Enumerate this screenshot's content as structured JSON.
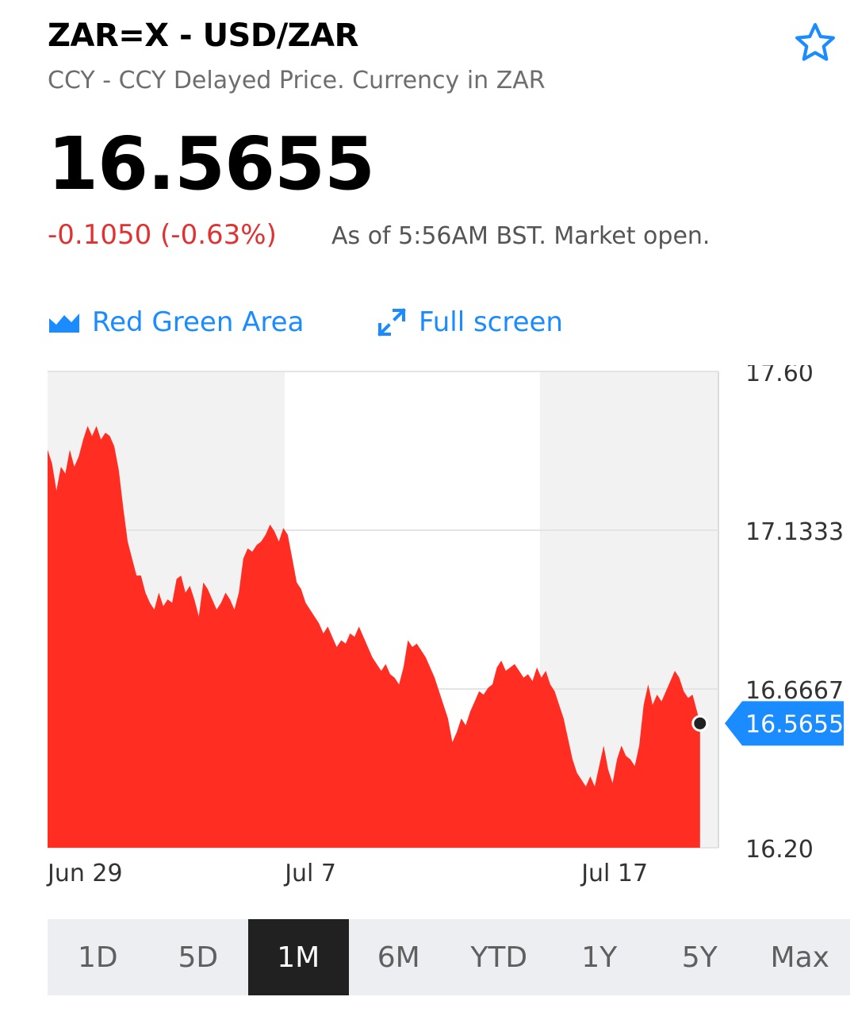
{
  "header": {
    "title": "ZAR=X - USD/ZAR",
    "subtitle": "CCY - CCY Delayed Price. Currency in ZAR",
    "star_icon": "star-outline-icon"
  },
  "quote": {
    "price": "16.5655",
    "change": "-0.1050 (-0.63%)",
    "as_of": "As of 5:56AM BST. Market open."
  },
  "toolbar": {
    "chart_type_label": "Red Green Area",
    "chart_type_icon": "area-chart-icon",
    "fullscreen_label": "Full screen",
    "fullscreen_icon": "expand-arrows-icon"
  },
  "colors": {
    "accent": "#1a8cff",
    "down": "#e03232",
    "area_fill": "#ff2d22",
    "active_range_bg": "#212121"
  },
  "chart_data": {
    "type": "area",
    "ylim": [
      16.2,
      17.6
    ],
    "y_ticks": [
      "17.60",
      "17.1333",
      "16.6667",
      "16.20"
    ],
    "x_tick_labels": [
      {
        "label": "Jun 29",
        "day": 0
      },
      {
        "label": "Jul 7",
        "day": 8
      },
      {
        "label": "Jul 17",
        "day": 18
      }
    ],
    "current_value": 16.5655,
    "current_label": "16.5655",
    "points": [
      [
        0.0,
        17.37
      ],
      [
        0.15,
        17.33
      ],
      [
        0.3,
        17.25
      ],
      [
        0.45,
        17.32
      ],
      [
        0.6,
        17.3
      ],
      [
        0.75,
        17.37
      ],
      [
        0.9,
        17.32
      ],
      [
        1.05,
        17.35
      ],
      [
        1.2,
        17.4
      ],
      [
        1.35,
        17.44
      ],
      [
        1.5,
        17.41
      ],
      [
        1.65,
        17.44
      ],
      [
        1.8,
        17.4
      ],
      [
        1.95,
        17.42
      ],
      [
        2.1,
        17.41
      ],
      [
        2.25,
        17.38
      ],
      [
        2.4,
        17.31
      ],
      [
        2.55,
        17.2
      ],
      [
        2.7,
        17.1
      ],
      [
        2.85,
        17.05
      ],
      [
        3.0,
        17.0
      ],
      [
        3.15,
        17.0
      ],
      [
        3.3,
        16.95
      ],
      [
        3.45,
        16.92
      ],
      [
        3.6,
        16.9
      ],
      [
        3.75,
        16.95
      ],
      [
        3.9,
        16.91
      ],
      [
        4.05,
        16.93
      ],
      [
        4.2,
        16.92
      ],
      [
        4.35,
        16.99
      ],
      [
        4.5,
        17.0
      ],
      [
        4.65,
        16.95
      ],
      [
        4.8,
        16.97
      ],
      [
        4.95,
        16.93
      ],
      [
        5.1,
        16.88
      ],
      [
        5.25,
        16.98
      ],
      [
        5.4,
        16.96
      ],
      [
        5.55,
        16.93
      ],
      [
        5.7,
        16.9
      ],
      [
        5.85,
        16.92
      ],
      [
        6.0,
        16.95
      ],
      [
        6.15,
        16.93
      ],
      [
        6.3,
        16.9
      ],
      [
        6.45,
        16.95
      ],
      [
        6.6,
        17.05
      ],
      [
        6.75,
        17.08
      ],
      [
        6.9,
        17.07
      ],
      [
        7.05,
        17.09
      ],
      [
        7.2,
        17.1
      ],
      [
        7.35,
        17.12
      ],
      [
        7.5,
        17.15
      ],
      [
        7.65,
        17.13
      ],
      [
        7.8,
        17.1
      ],
      [
        7.95,
        17.14
      ],
      [
        8.1,
        17.12
      ],
      [
        8.25,
        17.05
      ],
      [
        8.4,
        16.98
      ],
      [
        8.55,
        16.96
      ],
      [
        8.7,
        16.92
      ],
      [
        8.85,
        16.9
      ],
      [
        9.0,
        16.88
      ],
      [
        9.15,
        16.86
      ],
      [
        9.3,
        16.83
      ],
      [
        9.45,
        16.85
      ],
      [
        9.6,
        16.82
      ],
      [
        9.75,
        16.79
      ],
      [
        9.9,
        16.81
      ],
      [
        10.05,
        16.8
      ],
      [
        10.2,
        16.83
      ],
      [
        10.35,
        16.82
      ],
      [
        10.5,
        16.85
      ],
      [
        10.65,
        16.82
      ],
      [
        10.8,
        16.79
      ],
      [
        10.95,
        16.76
      ],
      [
        11.1,
        16.74
      ],
      [
        11.25,
        16.72
      ],
      [
        11.4,
        16.74
      ],
      [
        11.55,
        16.71
      ],
      [
        11.7,
        16.7
      ],
      [
        11.85,
        16.68
      ],
      [
        12.0,
        16.73
      ],
      [
        12.15,
        16.81
      ],
      [
        12.3,
        16.79
      ],
      [
        12.45,
        16.8
      ],
      [
        12.6,
        16.78
      ],
      [
        12.75,
        16.76
      ],
      [
        12.9,
        16.73
      ],
      [
        13.05,
        16.7
      ],
      [
        13.2,
        16.66
      ],
      [
        13.35,
        16.62
      ],
      [
        13.5,
        16.58
      ],
      [
        13.65,
        16.51
      ],
      [
        13.8,
        16.54
      ],
      [
        13.95,
        16.58
      ],
      [
        14.1,
        16.56
      ],
      [
        14.25,
        16.6
      ],
      [
        14.4,
        16.63
      ],
      [
        14.55,
        16.66
      ],
      [
        14.7,
        16.65
      ],
      [
        14.85,
        16.67
      ],
      [
        15.0,
        16.68
      ],
      [
        15.15,
        16.73
      ],
      [
        15.3,
        16.75
      ],
      [
        15.45,
        16.72
      ],
      [
        15.6,
        16.73
      ],
      [
        15.75,
        16.74
      ],
      [
        15.9,
        16.72
      ],
      [
        16.05,
        16.7
      ],
      [
        16.2,
        16.71
      ],
      [
        16.35,
        16.69
      ],
      [
        16.5,
        16.73
      ],
      [
        16.65,
        16.7
      ],
      [
        16.8,
        16.72
      ],
      [
        16.95,
        16.68
      ],
      [
        17.1,
        16.66
      ],
      [
        17.25,
        16.62
      ],
      [
        17.4,
        16.58
      ],
      [
        17.55,
        16.52
      ],
      [
        17.7,
        16.46
      ],
      [
        17.85,
        16.42
      ],
      [
        18.0,
        16.4
      ],
      [
        18.15,
        16.38
      ],
      [
        18.3,
        16.41
      ],
      [
        18.45,
        16.38
      ],
      [
        18.6,
        16.44
      ],
      [
        18.75,
        16.5
      ],
      [
        18.9,
        16.43
      ],
      [
        19.05,
        16.39
      ],
      [
        19.2,
        16.46
      ],
      [
        19.35,
        16.5
      ],
      [
        19.5,
        16.47
      ],
      [
        19.65,
        16.46
      ],
      [
        19.8,
        16.44
      ],
      [
        19.95,
        16.5
      ],
      [
        20.1,
        16.62
      ],
      [
        20.25,
        16.68
      ],
      [
        20.4,
        16.62
      ],
      [
        20.55,
        16.65
      ],
      [
        20.7,
        16.63
      ],
      [
        20.85,
        16.66
      ],
      [
        21.0,
        16.69
      ],
      [
        21.15,
        16.72
      ],
      [
        21.3,
        16.7
      ],
      [
        21.45,
        16.66
      ],
      [
        21.6,
        16.64
      ],
      [
        21.75,
        16.65
      ],
      [
        21.9,
        16.6
      ],
      [
        22.0,
        16.5655
      ]
    ]
  },
  "ranges": {
    "active": "1M",
    "items": [
      "1D",
      "5D",
      "1M",
      "6M",
      "YTD",
      "1Y",
      "5Y",
      "Max"
    ]
  }
}
